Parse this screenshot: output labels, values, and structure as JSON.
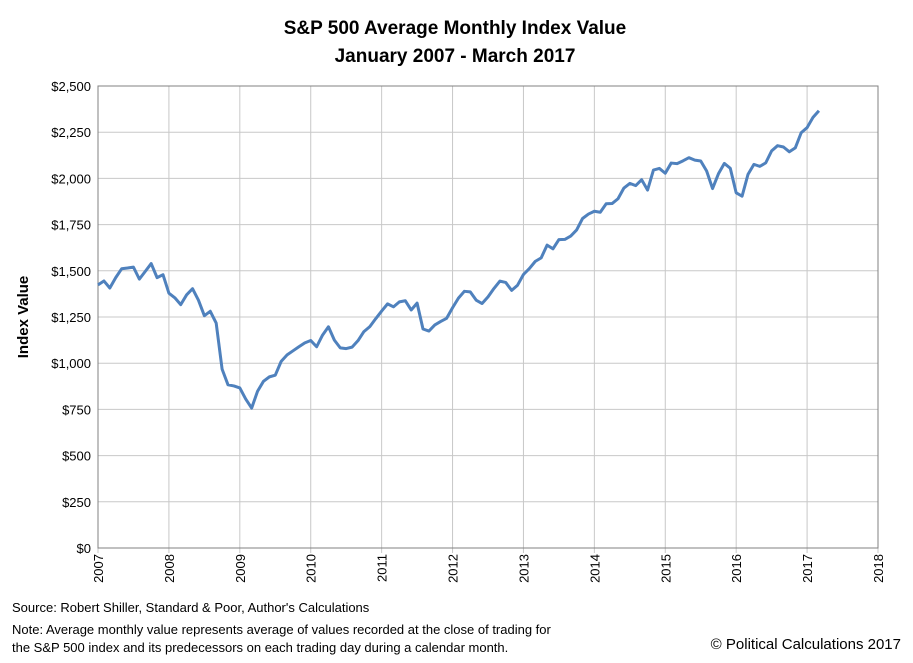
{
  "chart_data": {
    "type": "line",
    "title": "S&P 500 Average Monthly Index Value",
    "subtitle": "January 2007 - March 2017",
    "xlabel": "",
    "ylabel": "Index Value",
    "xlim": [
      2007,
      2018
    ],
    "ylim": [
      0,
      2500
    ],
    "x_ticks": [
      "2007",
      "2008",
      "2009",
      "2010",
      "2011",
      "2012",
      "2013",
      "2014",
      "2015",
      "2016",
      "2017",
      "2018"
    ],
    "y_ticks": [
      "$0",
      "$250",
      "$500",
      "$750",
      "$1,000",
      "$1,250",
      "$1,500",
      "$1,750",
      "$2,000",
      "$2,250",
      "$2,500"
    ],
    "grid": true,
    "legend": "none",
    "line_color": "#4f81bd",
    "series": [
      {
        "x_start": "2007-01",
        "x_step": "month",
        "values": [
          1424,
          1445,
          1407,
          1463,
          1511,
          1515,
          1520,
          1455,
          1497,
          1539,
          1463,
          1479,
          1379,
          1354,
          1317,
          1370,
          1403,
          1341,
          1257,
          1281,
          1217,
          968,
          883,
          877,
          866,
          806,
          757,
          848,
          902,
          926,
          935,
          1010,
          1045,
          1067,
          1089,
          1110,
          1123,
          1089,
          1152,
          1197,
          1125,
          1083,
          1079,
          1087,
          1122,
          1171,
          1198,
          1241,
          1282,
          1321,
          1305,
          1332,
          1338,
          1288,
          1325,
          1185,
          1174,
          1207,
          1226,
          1243,
          1300,
          1352,
          1389,
          1386,
          1341,
          1323,
          1359,
          1404,
          1444,
          1437,
          1394,
          1422,
          1480,
          1512,
          1551,
          1570,
          1639,
          1619,
          1669,
          1670,
          1688,
          1721,
          1783,
          1807,
          1822,
          1817,
          1863,
          1864,
          1890,
          1948,
          1973,
          1961,
          1993,
          1937,
          2045,
          2054,
          2028,
          2083,
          2080,
          2095,
          2112,
          2099,
          2094,
          2040,
          1945,
          2025,
          2081,
          2055,
          1922,
          1904,
          2022,
          2076,
          2065,
          2084,
          2149,
          2177,
          2170,
          2144,
          2165,
          2247,
          2275,
          2330,
          2366
        ]
      }
    ]
  },
  "source_note": "Source: Robert Shiller, Standard & Poor, Author's Calculations",
  "note_line1": "Note: Average monthly value represents average of values recorded at the close of trading for",
  "note_line2": "the S&P 500 index and its predecessors on each trading day during a calendar month.",
  "copyright": "© Political Calculations 2017"
}
